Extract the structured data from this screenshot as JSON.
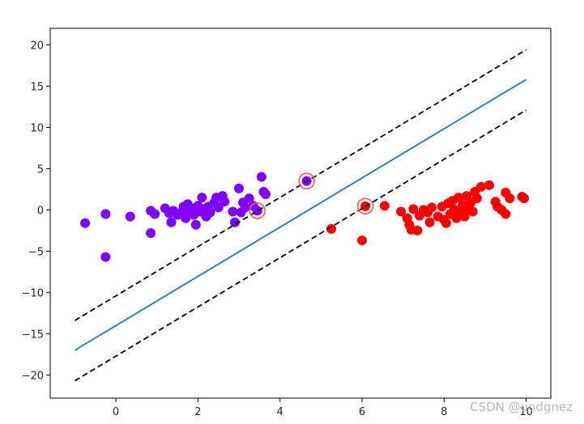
{
  "watermark": "CSDN @uodgnez",
  "chart_data": {
    "type": "scatter",
    "title": "",
    "xlabel": "",
    "ylabel": "",
    "xlim": [
      -1.6,
      10.6
    ],
    "ylim": [
      -22.8,
      22.0
    ],
    "xticks": [
      0,
      2,
      4,
      6,
      8,
      10
    ],
    "yticks": [
      -20,
      -15,
      -10,
      -5,
      0,
      5,
      10,
      15,
      20
    ],
    "grid": false,
    "colors": {
      "class_0": "#8000ff",
      "class_1": "#ff0000",
      "decision_boundary": "#1f77b4",
      "margins": "#000000",
      "support_vector_ring": "#ff5555"
    },
    "decision_boundary": {
      "x": [
        -1.0,
        10.0
      ],
      "y": [
        -17.0,
        15.8
      ]
    },
    "margin_upper": {
      "x": [
        -1.0,
        10.0
      ],
      "y": [
        -13.4,
        19.4
      ]
    },
    "margin_lower": {
      "x": [
        -1.0,
        10.0
      ],
      "y": [
        -20.7,
        12.1
      ]
    },
    "support_vectors": [
      [
        3.45,
        -0.1
      ],
      [
        4.65,
        3.5
      ],
      [
        6.08,
        0.45
      ]
    ],
    "series": [
      {
        "color": "#8000ff",
        "points": [
          [
            -0.75,
            -1.6
          ],
          [
            -0.25,
            -0.5
          ],
          [
            -0.25,
            -5.7
          ],
          [
            0.35,
            -0.8
          ],
          [
            0.85,
            -0.1
          ],
          [
            0.85,
            -2.8
          ],
          [
            0.95,
            -0.5
          ],
          [
            1.2,
            0.2
          ],
          [
            1.3,
            -0.4
          ],
          [
            1.35,
            -1.5
          ],
          [
            1.4,
            -0.1
          ],
          [
            1.5,
            -0.6
          ],
          [
            1.6,
            -0.3
          ],
          [
            1.65,
            0.4
          ],
          [
            1.7,
            -1.0
          ],
          [
            1.75,
            0.7
          ],
          [
            1.8,
            -0.2
          ],
          [
            1.85,
            0.2
          ],
          [
            1.9,
            -0.6
          ],
          [
            1.95,
            -1.8
          ],
          [
            2.0,
            0.5
          ],
          [
            2.05,
            -0.2
          ],
          [
            2.1,
            1.5
          ],
          [
            2.15,
            0.1
          ],
          [
            2.2,
            -0.8
          ],
          [
            2.25,
            0.4
          ],
          [
            2.3,
            -0.3
          ],
          [
            2.4,
            0.9
          ],
          [
            2.45,
            1.5
          ],
          [
            2.5,
            0.3
          ],
          [
            2.6,
            1.7
          ],
          [
            2.65,
            1.0
          ],
          [
            2.85,
            -0.2
          ],
          [
            2.9,
            -1.5
          ],
          [
            3.0,
            2.6
          ],
          [
            3.05,
            -0.3
          ],
          [
            3.1,
            0.9
          ],
          [
            3.15,
            0.3
          ],
          [
            3.25,
            1.4
          ],
          [
            3.35,
            0.5
          ],
          [
            3.55,
            4.0
          ],
          [
            3.6,
            2.2
          ],
          [
            3.65,
            1.9
          ],
          [
            3.45,
            -0.1
          ],
          [
            4.65,
            3.5
          ]
        ]
      },
      {
        "color": "#ff0000",
        "points": [
          [
            5.25,
            -2.3
          ],
          [
            6.0,
            -3.7
          ],
          [
            6.08,
            0.45
          ],
          [
            6.55,
            0.5
          ],
          [
            6.95,
            -0.2
          ],
          [
            7.1,
            -1.0
          ],
          [
            7.15,
            -1.8
          ],
          [
            7.2,
            -2.4
          ],
          [
            7.25,
            0.1
          ],
          [
            7.35,
            -2.5
          ],
          [
            7.4,
            -0.7
          ],
          [
            7.5,
            0.0
          ],
          [
            7.6,
            -0.3
          ],
          [
            7.65,
            -1.5
          ],
          [
            7.7,
            0.3
          ],
          [
            7.85,
            -0.8
          ],
          [
            7.95,
            0.4
          ],
          [
            8.0,
            -1.2
          ],
          [
            8.05,
            -1.6
          ],
          [
            8.1,
            0.8
          ],
          [
            8.15,
            -0.5
          ],
          [
            8.2,
            1.1
          ],
          [
            8.25,
            0.0
          ],
          [
            8.3,
            -1.0
          ],
          [
            8.35,
            1.5
          ],
          [
            8.4,
            -0.3
          ],
          [
            8.45,
            0.6
          ],
          [
            8.5,
            -0.8
          ],
          [
            8.55,
            1.7
          ],
          [
            8.6,
            0.2
          ],
          [
            8.65,
            0.9
          ],
          [
            8.7,
            -0.2
          ],
          [
            8.75,
            2.2
          ],
          [
            8.8,
            1.4
          ],
          [
            8.9,
            2.8
          ],
          [
            9.1,
            3.0
          ],
          [
            9.25,
            1.0
          ],
          [
            9.3,
            0.4
          ],
          [
            9.4,
            0.0
          ],
          [
            9.5,
            -0.5
          ],
          [
            9.5,
            2.1
          ],
          [
            9.6,
            1.4
          ],
          [
            9.9,
            1.6
          ],
          [
            9.95,
            1.4
          ]
        ]
      }
    ]
  }
}
